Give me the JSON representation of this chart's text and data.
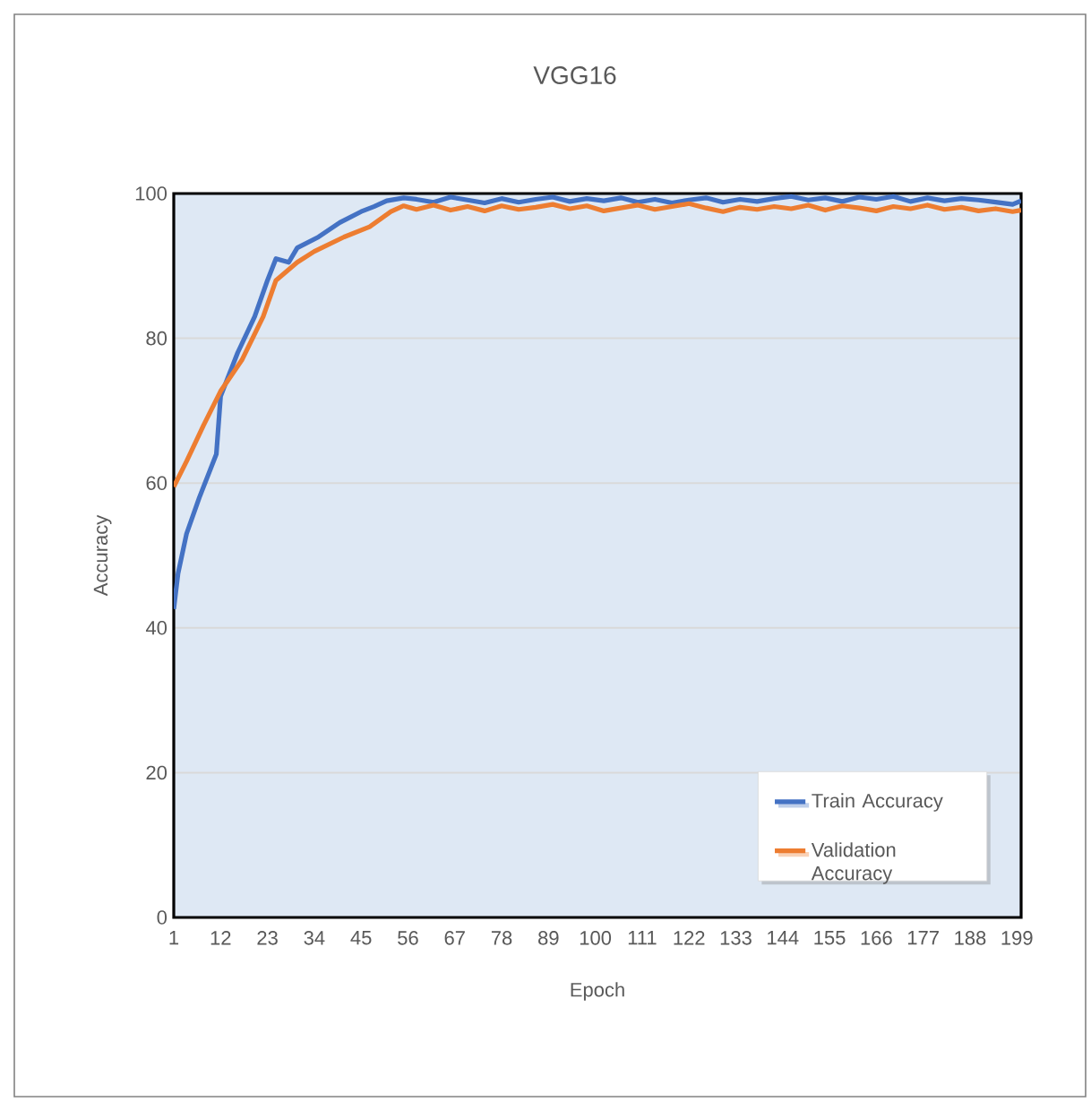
{
  "chart_data": {
    "type": "line",
    "title": "VGG16",
    "xlabel": "Epoch",
    "ylabel": "Accuracy",
    "xlim": [
      1,
      200
    ],
    "xticks": [
      1,
      12,
      23,
      34,
      45,
      56,
      67,
      78,
      89,
      100,
      111,
      122,
      133,
      144,
      155,
      166,
      177,
      188,
      199
    ],
    "ylim": [
      0,
      100
    ],
    "yticks": [
      0,
      20,
      40,
      60,
      80,
      100
    ],
    "grid": "y",
    "legend": "bottom right",
    "marker": "none",
    "line_style": "solid",
    "series": [
      {
        "name": "Train Accuracy",
        "color": "#4472c4",
        "x": [
          1,
          2,
          4,
          7,
          11,
          12,
          16,
          20,
          23,
          25,
          28,
          30,
          35,
          40,
          45,
          48,
          51,
          55,
          58,
          62,
          66,
          70,
          74,
          78,
          82,
          86,
          90,
          94,
          98,
          102,
          106,
          110,
          114,
          118,
          122,
          126,
          130,
          134,
          138,
          142,
          146,
          150,
          154,
          158,
          162,
          166,
          170,
          174,
          178,
          182,
          186,
          190,
          194,
          198,
          200
        ],
        "values": [
          42.6,
          47.5,
          53,
          58,
          64,
          72,
          78,
          83,
          88,
          91,
          90.5,
          92.5,
          94,
          96,
          97.5,
          98.2,
          99,
          99.4,
          99.2,
          98.8,
          99.5,
          99.1,
          98.7,
          99.3,
          98.8,
          99.2,
          99.5,
          98.9,
          99.3,
          99,
          99.4,
          98.8,
          99.2,
          98.7,
          99.1,
          99.4,
          98.8,
          99.2,
          98.9,
          99.3,
          99.6,
          99.1,
          99.4,
          98.9,
          99.5,
          99.2,
          99.6,
          98.9,
          99.4,
          99,
          99.3,
          99.1,
          98.8,
          98.5,
          99
        ]
      },
      {
        "name": "Validation Accuracy",
        "color": "#ed7d31",
        "x": [
          1,
          4,
          8,
          12,
          17,
          22,
          25,
          30,
          34,
          41,
          47,
          52,
          55,
          58,
          62,
          66,
          70,
          74,
          78,
          82,
          86,
          90,
          94,
          98,
          102,
          106,
          110,
          114,
          118,
          122,
          126,
          130,
          134,
          138,
          142,
          146,
          150,
          154,
          158,
          162,
          166,
          170,
          174,
          178,
          182,
          186,
          190,
          194,
          198,
          200
        ],
        "values": [
          59.5,
          63,
          68,
          72.7,
          77,
          83,
          88,
          90.5,
          92,
          94,
          95.4,
          97.5,
          98.3,
          97.8,
          98.4,
          97.7,
          98.2,
          97.6,
          98.3,
          97.8,
          98.1,
          98.5,
          97.9,
          98.3,
          97.6,
          98,
          98.4,
          97.8,
          98.2,
          98.6,
          98,
          97.5,
          98.1,
          97.8,
          98.2,
          97.9,
          98.4,
          97.7,
          98.3,
          98,
          97.6,
          98.2,
          97.9,
          98.4,
          97.8,
          98.1,
          97.6,
          97.9,
          97.5,
          97.7
        ]
      }
    ]
  }
}
